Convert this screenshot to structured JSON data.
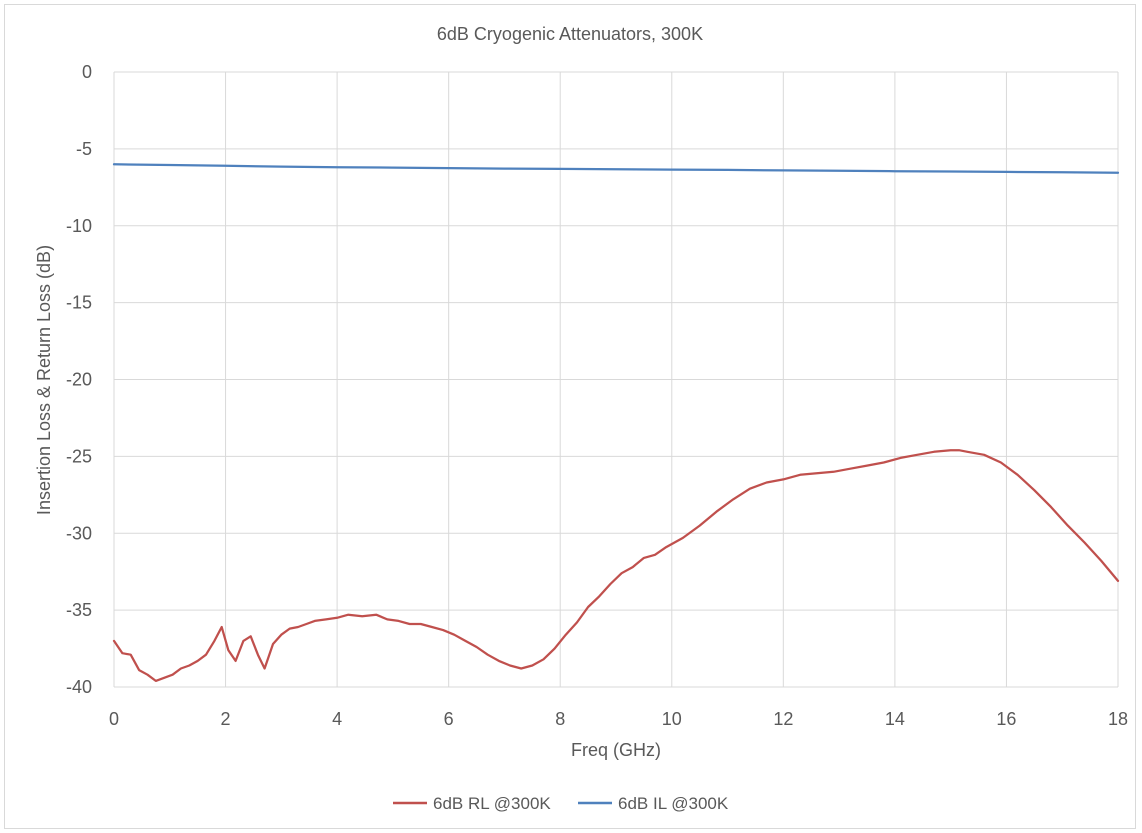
{
  "chart_data": {
    "type": "line",
    "title": "6dB Cryogenic Attenuators, 300K",
    "xlabel": "Freq (GHz)",
    "ylabel": "Insertion Loss & Return Loss (dB)",
    "xlim": [
      0,
      18
    ],
    "ylim": [
      -40,
      0
    ],
    "x_ticks": [
      0,
      2,
      4,
      6,
      8,
      10,
      12,
      14,
      16,
      18
    ],
    "y_ticks": [
      0,
      -5,
      -10,
      -15,
      -20,
      -25,
      -30,
      -35,
      -40
    ],
    "grid": true,
    "legend_position": "bottom",
    "series": [
      {
        "name": "6dB RL @300K",
        "color": "#c0504d",
        "x": [
          0.0,
          0.15,
          0.3,
          0.45,
          0.6,
          0.75,
          0.9,
          1.05,
          1.2,
          1.35,
          1.5,
          1.65,
          1.8,
          1.93,
          2.05,
          2.18,
          2.32,
          2.45,
          2.58,
          2.7,
          2.85,
          3.0,
          3.15,
          3.3,
          3.45,
          3.6,
          3.8,
          4.0,
          4.2,
          4.45,
          4.7,
          4.9,
          5.1,
          5.3,
          5.5,
          5.7,
          5.9,
          6.1,
          6.3,
          6.5,
          6.7,
          6.9,
          7.1,
          7.3,
          7.5,
          7.7,
          7.9,
          8.1,
          8.3,
          8.5,
          8.7,
          8.9,
          9.1,
          9.3,
          9.5,
          9.7,
          9.9,
          10.2,
          10.5,
          10.8,
          11.1,
          11.4,
          11.7,
          12.0,
          12.3,
          12.6,
          12.9,
          13.2,
          13.5,
          13.8,
          14.1,
          14.4,
          14.7,
          15.0,
          15.15,
          15.3,
          15.6,
          15.9,
          16.2,
          16.5,
          16.8,
          17.1,
          17.4,
          17.7,
          18.0
        ],
        "values": [
          -37.0,
          -37.8,
          -37.9,
          -38.9,
          -39.2,
          -39.6,
          -39.4,
          -39.2,
          -38.8,
          -38.6,
          -38.3,
          -37.9,
          -37.0,
          -36.1,
          -37.6,
          -38.3,
          -37.0,
          -36.7,
          -37.9,
          -38.8,
          -37.2,
          -36.6,
          -36.2,
          -36.1,
          -35.9,
          -35.7,
          -35.6,
          -35.5,
          -35.3,
          -35.4,
          -35.3,
          -35.6,
          -35.7,
          -35.9,
          -35.9,
          -36.1,
          -36.3,
          -36.6,
          -37.0,
          -37.4,
          -37.9,
          -38.3,
          -38.6,
          -38.8,
          -38.6,
          -38.2,
          -37.5,
          -36.6,
          -35.8,
          -34.8,
          -34.1,
          -33.3,
          -32.6,
          -32.2,
          -31.6,
          -31.4,
          -30.9,
          -30.3,
          -29.5,
          -28.6,
          -27.8,
          -27.1,
          -26.7,
          -26.5,
          -26.2,
          -26.1,
          -26.0,
          -25.8,
          -25.6,
          -25.4,
          -25.1,
          -24.9,
          -24.7,
          -24.6,
          -24.6,
          -24.7,
          -24.9,
          -25.4,
          -26.2,
          -27.2,
          -28.3,
          -29.5,
          -30.6,
          -31.8,
          -33.1
        ]
      },
      {
        "name": "6dB IL @300K",
        "color": "#4f81bd",
        "x": [
          0.0,
          1.0,
          2.0,
          3.0,
          4.0,
          5.0,
          6.0,
          7.0,
          8.0,
          9.0,
          10.0,
          11.0,
          12.0,
          13.0,
          14.0,
          15.0,
          16.0,
          17.0,
          18.0
        ],
        "values": [
          -6.0,
          -6.05,
          -6.1,
          -6.15,
          -6.2,
          -6.22,
          -6.25,
          -6.28,
          -6.3,
          -6.32,
          -6.35,
          -6.37,
          -6.4,
          -6.42,
          -6.45,
          -6.47,
          -6.5,
          -6.52,
          -6.55
        ]
      }
    ]
  }
}
